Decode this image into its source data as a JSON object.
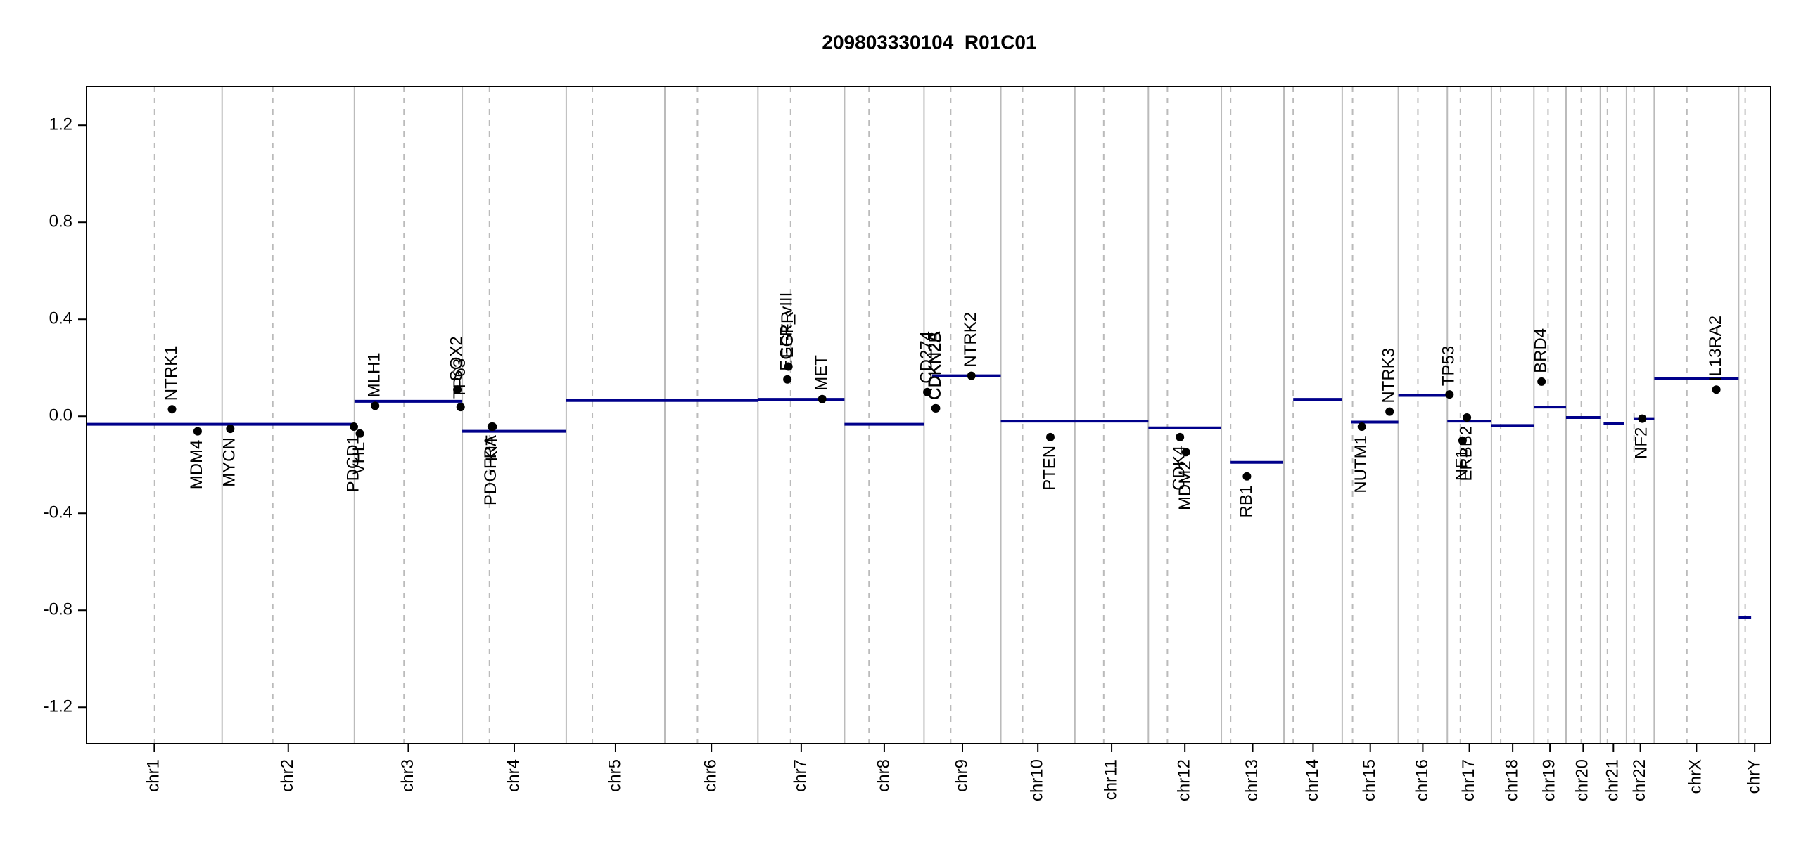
{
  "chart_data": {
    "type": "cnv",
    "title": "209803330104_R01C01",
    "xlim": [
      0,
      3093
    ],
    "ylim": [
      -1.35,
      1.36
    ],
    "yticks": [
      -1.2,
      -0.8,
      -0.4,
      {
        "value": 0,
        "label": "0.0"
      },
      0.4,
      0.8,
      1.2
    ],
    "segment_color": "#00008b",
    "gene_color": "#000000",
    "chromosome_line_color": "#bbbbbb",
    "chromosomes": [
      {
        "name": "chr1",
        "start": 0,
        "end": 249,
        "centromere": 125
      },
      {
        "name": "chr2",
        "start": 249,
        "end": 492,
        "centromere": 342
      },
      {
        "name": "chr3",
        "start": 492,
        "end": 690,
        "centromere": 583
      },
      {
        "name": "chr4",
        "start": 690,
        "end": 881,
        "centromere": 740
      },
      {
        "name": "chr5",
        "start": 881,
        "end": 1062,
        "centromere": 929
      },
      {
        "name": "chr6",
        "start": 1062,
        "end": 1233,
        "centromere": 1122
      },
      {
        "name": "chr7",
        "start": 1233,
        "end": 1392,
        "centromere": 1293
      },
      {
        "name": "chr8",
        "start": 1392,
        "end": 1538,
        "centromere": 1437
      },
      {
        "name": "chr9",
        "start": 1538,
        "end": 1679,
        "centromere": 1587
      },
      {
        "name": "chr10",
        "start": 1679,
        "end": 1815,
        "centromere": 1719
      },
      {
        "name": "chr11",
        "start": 1815,
        "end": 1950,
        "centromere": 1868
      },
      {
        "name": "chr12",
        "start": 1950,
        "end": 2084,
        "centromere": 1985
      },
      {
        "name": "chr13",
        "start": 2084,
        "end": 2199,
        "centromere": 2101
      },
      {
        "name": "chr14",
        "start": 2199,
        "end": 2306,
        "centromere": 2216
      },
      {
        "name": "chr15",
        "start": 2306,
        "end": 2409,
        "centromere": 2325
      },
      {
        "name": "chr16",
        "start": 2409,
        "end": 2499,
        "centromere": 2445
      },
      {
        "name": "chr17",
        "start": 2499,
        "end": 2580,
        "centromere": 2523
      },
      {
        "name": "chr18",
        "start": 2580,
        "end": 2658,
        "centromere": 2597
      },
      {
        "name": "chr19",
        "start": 2658,
        "end": 2717,
        "centromere": 2684
      },
      {
        "name": "chr20",
        "start": 2717,
        "end": 2780,
        "centromere": 2745
      },
      {
        "name": "chr21",
        "start": 2780,
        "end": 2828,
        "centromere": 2793
      },
      {
        "name": "chr22",
        "start": 2828,
        "end": 2879,
        "centromere": 2842
      },
      {
        "name": "chrX",
        "start": 2879,
        "end": 3034,
        "centromere": 2939
      },
      {
        "name": "chrY",
        "start": 3034,
        "end": 3093,
        "centromere": 3046
      }
    ],
    "segments": [
      {
        "start": 0,
        "end": 492,
        "value": -0.033
      },
      {
        "start": 492,
        "end": 690,
        "value": 0.062
      },
      {
        "start": 690,
        "end": 881,
        "value": -0.062
      },
      {
        "start": 881,
        "end": 1233,
        "value": 0.065
      },
      {
        "start": 1233,
        "end": 1392,
        "value": 0.07
      },
      {
        "start": 1392,
        "end": 1538,
        "value": -0.033
      },
      {
        "start": 1553,
        "end": 1679,
        "value": 0.167
      },
      {
        "start": 1679,
        "end": 1950,
        "value": -0.02
      },
      {
        "start": 1950,
        "end": 2084,
        "value": -0.048
      },
      {
        "start": 2101,
        "end": 2197,
        "value": -0.19
      },
      {
        "start": 2216,
        "end": 2306,
        "value": 0.07
      },
      {
        "start": 2323,
        "end": 2409,
        "value": -0.024
      },
      {
        "start": 2409,
        "end": 2499,
        "value": 0.086
      },
      {
        "start": 2499,
        "end": 2580,
        "value": -0.02
      },
      {
        "start": 2580,
        "end": 2658,
        "value": -0.038
      },
      {
        "start": 2658,
        "end": 2717,
        "value": 0.038
      },
      {
        "start": 2717,
        "end": 2780,
        "value": -0.005
      },
      {
        "start": 2786,
        "end": 2824,
        "value": -0.03
      },
      {
        "start": 2841,
        "end": 2879,
        "value": -0.01
      },
      {
        "start": 2879,
        "end": 3034,
        "value": 0.157
      },
      {
        "start": 3034,
        "end": 3057,
        "value": -0.83
      }
    ],
    "genes": [
      {
        "name": "NTRK1",
        "x": 157,
        "value": 0.029
      },
      {
        "name": "MDM4",
        "x": 204,
        "value": -0.062
      },
      {
        "name": "MYCN",
        "x": 264,
        "value": -0.052
      },
      {
        "name": "PDCD1",
        "x": 491,
        "value": -0.043
      },
      {
        "name": "VHL",
        "x": 502,
        "value": -0.071
      },
      {
        "name": "MLH1",
        "x": 530,
        "value": 0.043
      },
      {
        "name": "SOX2",
        "x": 681,
        "value": 0.11
      },
      {
        "name": "TP63",
        "x": 687,
        "value": 0.038
      },
      {
        "name": "PDGFRA",
        "x": 744,
        "value": -0.043
      },
      {
        "name": "KIT",
        "x": 746,
        "value": -0.043
      },
      {
        "name": "EGFR_vIII",
        "x": 1287,
        "value": 0.152
      },
      {
        "name": "EGFR",
        "x": 1289,
        "value": 0.205
      },
      {
        "name": "MET",
        "x": 1351,
        "value": 0.071
      },
      {
        "name": "CD274",
        "x": 1544,
        "value": 0.1
      },
      {
        "name": "CDKN2A",
        "x": 1559,
        "value": 0.033
      },
      {
        "name": "CDKN2B",
        "x": 1560,
        "value": 0.033
      },
      {
        "name": "NTRK2",
        "x": 1625,
        "value": 0.167
      },
      {
        "name": "PTEN",
        "x": 1770,
        "value": -0.086
      },
      {
        "name": "CDK4",
        "x": 2008,
        "value": -0.086
      },
      {
        "name": "MDM2",
        "x": 2019,
        "value": -0.148
      },
      {
        "name": "RB1",
        "x": 2131,
        "value": -0.248
      },
      {
        "name": "NUTM1",
        "x": 2342,
        "value": -0.043
      },
      {
        "name": "NTRK3",
        "x": 2393,
        "value": 0.019
      },
      {
        "name": "TP53",
        "x": 2503,
        "value": 0.09
      },
      {
        "name": "NF1",
        "x": 2527,
        "value": -0.1
      },
      {
        "name": "ERBB2",
        "x": 2535,
        "value": -0.005
      },
      {
        "name": "BRD4",
        "x": 2672,
        "value": 0.143
      },
      {
        "name": "NF2",
        "x": 2857,
        "value": -0.01
      },
      {
        "name": "IL13RA2",
        "x": 2993,
        "value": 0.11
      }
    ]
  }
}
